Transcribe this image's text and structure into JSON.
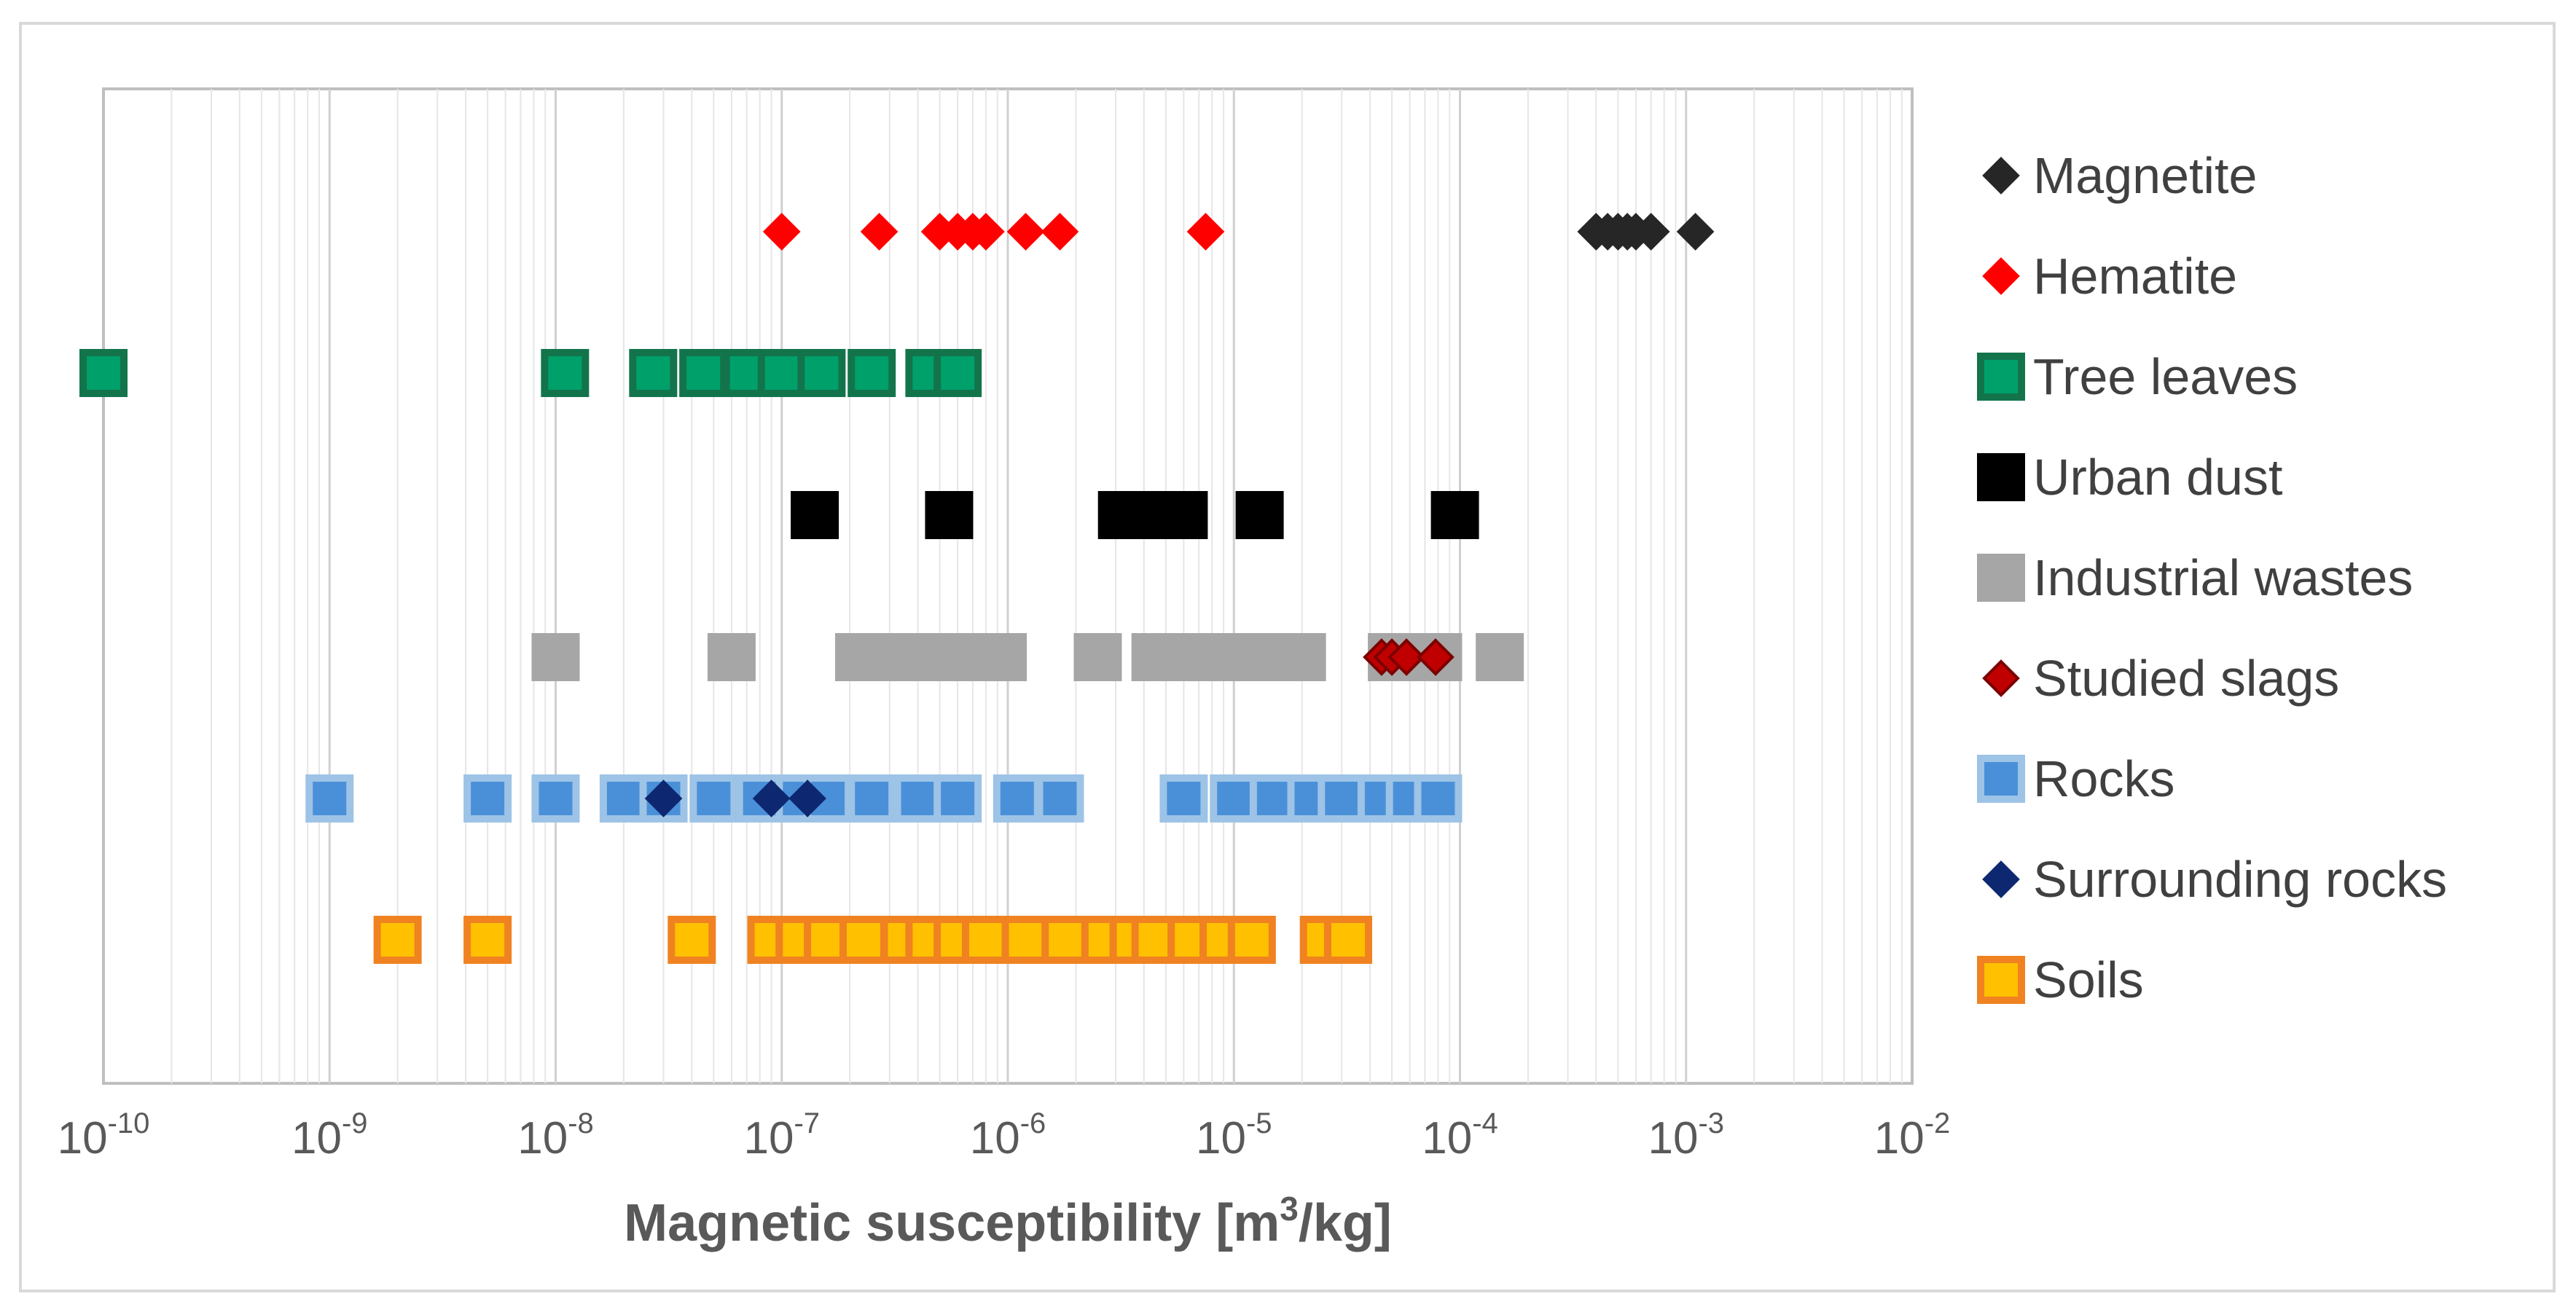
{
  "chart_data": {
    "type": "scatter",
    "title": "",
    "xscale": "log",
    "xlim_exponents": [
      -10,
      -2
    ],
    "xlabel_parts": [
      "Magnetic susceptibility [m",
      "3",
      "/kg]"
    ],
    "xtick_labels": [
      {
        "base": "10",
        "exp": "-10"
      },
      {
        "base": "10",
        "exp": "-9"
      },
      {
        "base": "10",
        "exp": "-8"
      },
      {
        "base": "10",
        "exp": "-7"
      },
      {
        "base": "10",
        "exp": "-6"
      },
      {
        "base": "10",
        "exp": "-5"
      },
      {
        "base": "10",
        "exp": "-4"
      },
      {
        "base": "10",
        "exp": "-3"
      },
      {
        "base": "10",
        "exp": "-2"
      }
    ],
    "ylabel": "",
    "grid": "vertical log-minor gridlines",
    "legend_position": "right",
    "series": [
      {
        "name": "Magnetite",
        "marker": "diamond",
        "color": "#262626",
        "edge": "#262626",
        "values": [
          0.0004,
          0.00045,
          0.0005,
          0.00055,
          0.0006,
          0.0007,
          0.0011
        ]
      },
      {
        "name": "Hematite",
        "marker": "diamond",
        "color": "#ff0000",
        "edge": "#ff0000",
        "values": [
          1e-07,
          2.7e-07,
          5e-07,
          6e-07,
          7e-07,
          8e-07,
          1.2e-06,
          1.7e-06,
          7.5e-06
        ]
      },
      {
        "name": "Tree leaves",
        "marker": "square",
        "color": "#00a06a",
        "edge": "#13744c",
        "values": [
          1e-10,
          1.1e-08,
          2.7e-08,
          4.5e-08,
          7e-08,
          1e-07,
          1.5e-07,
          2.5e-07,
          4.5e-07,
          6e-07
        ]
      },
      {
        "name": "Urban dust",
        "marker": "square",
        "color": "#000000",
        "edge": "#000000",
        "values": [
          1.4e-07,
          5.5e-07,
          3.2e-06,
          4e-06,
          5e-06,
          6e-06,
          1.3e-05,
          9.5e-05
        ]
      },
      {
        "name": "Industrial wastes",
        "marker": "square",
        "color": "#a6a6a6",
        "edge": "#a6a6a6",
        "values": [
          1e-08,
          6e-08,
          2.2e-07,
          3.5e-07,
          5e-07,
          7e-07,
          9.5e-07,
          2.5e-06,
          4.5e-06,
          6.5e-06,
          9e-06,
          1.3e-05,
          2e-05,
          5e-05,
          6.5e-05,
          8e-05,
          0.00015
        ]
      },
      {
        "name": "Studied slags",
        "marker": "diamond",
        "color": "#c00000",
        "edge": "#7b0000",
        "values": [
          4.5e-05,
          5e-05,
          5.8e-05,
          7.8e-05
        ]
      },
      {
        "name": "Rocks",
        "marker": "square",
        "color": "#4a90d9",
        "edge": "#9dc3e6",
        "values": [
          1e-09,
          5e-09,
          1e-08,
          2e-08,
          3e-08,
          5e-08,
          8e-08,
          1.2e-07,
          1.6e-07,
          2.5e-07,
          4e-07,
          6e-07,
          1.1e-06,
          1.7e-06,
          6e-06,
          1e-05,
          1.5e-05,
          2.2e-05,
          3e-05,
          4.5e-05,
          6e-05,
          8e-05
        ]
      },
      {
        "name": "Surrounding rocks",
        "marker": "diamond",
        "color": "#0d2870",
        "edge": "#0d2870",
        "values": [
          3e-08,
          9e-08,
          1.3e-07
        ]
      },
      {
        "name": "Soils",
        "marker": "square",
        "color": "#ffc000",
        "edge": "#f08221",
        "values": [
          2e-09,
          5e-09,
          4e-08,
          9e-08,
          1.2e-07,
          1.6e-07,
          2.3e-07,
          3.5e-07,
          4.5e-07,
          6e-07,
          8e-07,
          1.2e-06,
          1.8e-06,
          2.7e-06,
          3.6e-06,
          4.5e-06,
          6.5e-06,
          9e-06,
          1.2e-05,
          2.5e-05,
          3.2e-05
        ]
      }
    ]
  }
}
